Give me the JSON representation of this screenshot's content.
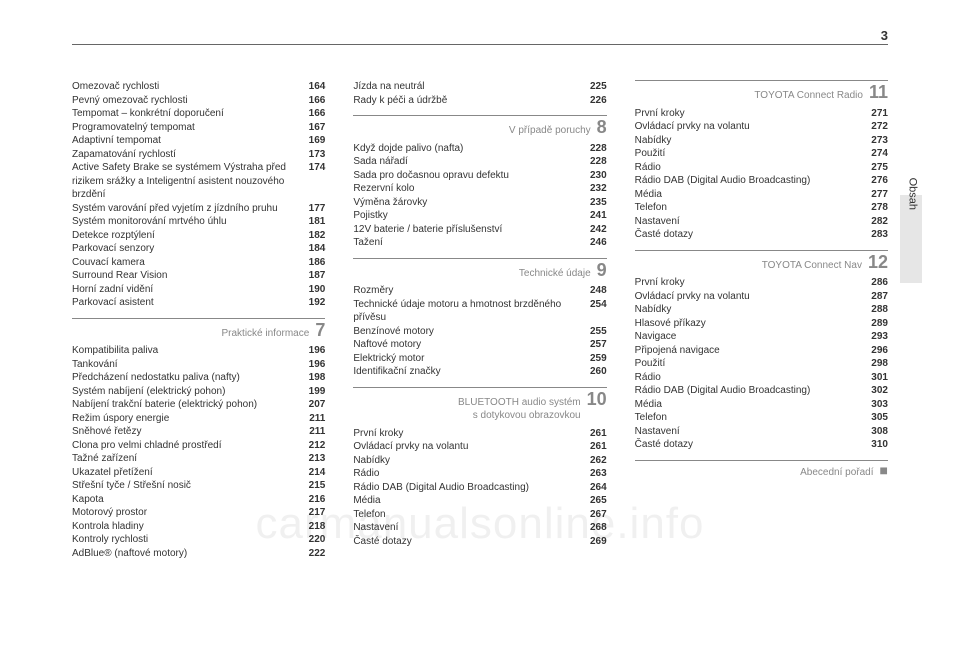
{
  "page_number": "3",
  "side_label": "Obsah",
  "watermark": "carmanualsonline.info",
  "col1": {
    "top": [
      {
        "label": "Omezovač rychlosti",
        "pg": "164"
      },
      {
        "label": "Pevný omezovač rychlosti",
        "pg": "166"
      },
      {
        "label": "Tempomat – konkrétní doporučení",
        "pg": "166"
      },
      {
        "label": "Programovatelný tempomat",
        "pg": "167"
      },
      {
        "label": "Adaptivní tempomat",
        "pg": "169"
      },
      {
        "label": "Zapamatování rychlostí",
        "pg": "173"
      },
      {
        "label": "Active Safety Brake se systémem Výstraha před rizikem srážky a Inteligentní asistent nouzového brzdění",
        "pg": "174"
      },
      {
        "label": "Systém varování před vyjetím z jízdního pruhu",
        "pg": "177"
      },
      {
        "label": "Systém monitorování mrtvého úhlu",
        "pg": "181"
      },
      {
        "label": "Detekce rozptýlení",
        "pg": "182"
      },
      {
        "label": "Parkovací senzory",
        "pg": "184"
      },
      {
        "label": "Couvací kamera",
        "pg": "186"
      },
      {
        "label": "Surround Rear Vision",
        "pg": "187"
      },
      {
        "label": "Horní zadní vidění",
        "pg": "190"
      },
      {
        "label": "Parkovací asistent",
        "pg": "192"
      }
    ],
    "section": {
      "title": "Praktické informace",
      "num": "7"
    },
    "items": [
      {
        "label": "Kompatibilita paliva",
        "pg": "196"
      },
      {
        "label": "Tankování",
        "pg": "196"
      },
      {
        "label": "Předcházení nedostatku paliva (nafty)",
        "pg": "198"
      },
      {
        "label": "Systém nabíjení (elektrický pohon)",
        "pg": "199"
      },
      {
        "label": "Nabíjení trakční baterie (elektrický pohon)",
        "pg": "207"
      },
      {
        "label": "Režim úspory energie",
        "pg": "211"
      },
      {
        "label": "Sněhové řetězy",
        "pg": "211"
      },
      {
        "label": "Clona pro velmi chladné prostředí",
        "pg": "212"
      },
      {
        "label": "Tažné zařízení",
        "pg": "213"
      },
      {
        "label": "Ukazatel přetížení",
        "pg": "214"
      },
      {
        "label": "Střešní tyče / Střešní nosič",
        "pg": "215"
      },
      {
        "label": "Kapota",
        "pg": "216"
      },
      {
        "label": "Motorový prostor",
        "pg": "217"
      },
      {
        "label": "Kontrola hladiny",
        "pg": "218"
      },
      {
        "label": "Kontroly rychlosti",
        "pg": "220"
      },
      {
        "label": "AdBlue® (naftové motory)",
        "pg": "222"
      }
    ]
  },
  "col2": {
    "top": [
      {
        "label": "Jízda na neutrál",
        "pg": "225"
      },
      {
        "label": "Rady k péči a údržbě",
        "pg": "226"
      }
    ],
    "section8": {
      "title": "V případě poruchy",
      "num": "8"
    },
    "items8": [
      {
        "label": "Když dojde palivo (nafta)",
        "pg": "228"
      },
      {
        "label": "Sada nářadí",
        "pg": "228"
      },
      {
        "label": "Sada pro dočasnou opravu defektu",
        "pg": "230"
      },
      {
        "label": "Rezervní kolo",
        "pg": "232"
      },
      {
        "label": "Výměna žárovky",
        "pg": "235"
      },
      {
        "label": "Pojistky",
        "pg": "241"
      },
      {
        "label": "12V baterie / baterie příslušenství",
        "pg": "242"
      },
      {
        "label": "Tažení",
        "pg": "246"
      }
    ],
    "section9": {
      "title": "Technické údaje",
      "num": "9"
    },
    "items9": [
      {
        "label": "Rozměry",
        "pg": "248"
      },
      {
        "label": "Technické údaje motoru a hmotnost brzděného přívěsu",
        "pg": "254"
      },
      {
        "label": "Benzínové motory",
        "pg": "255"
      },
      {
        "label": "Naftové motory",
        "pg": "257"
      },
      {
        "label": "Elektrický motor",
        "pg": "259"
      },
      {
        "label": "Identifikační značky",
        "pg": "260"
      }
    ],
    "section10": {
      "title": "BLUETOOTH audio systém",
      "subtitle": "s dotykovou obrazovkou",
      "num": "10"
    },
    "items10": [
      {
        "label": "První kroky",
        "pg": "261"
      },
      {
        "label": "Ovládací prvky na volantu",
        "pg": "261"
      },
      {
        "label": "Nabídky",
        "pg": "262"
      },
      {
        "label": "Rádio",
        "pg": "263"
      },
      {
        "label": "Rádio DAB (Digital Audio Broadcasting)",
        "pg": "264"
      },
      {
        "label": "Média",
        "pg": "265"
      },
      {
        "label": "Telefon",
        "pg": "267"
      },
      {
        "label": "Nastavení",
        "pg": "268"
      },
      {
        "label": "Časté dotazy",
        "pg": "269"
      }
    ]
  },
  "col3": {
    "section11": {
      "title": "TOYOTA Connect Radio",
      "num": "11"
    },
    "items11": [
      {
        "label": "První kroky",
        "pg": "271"
      },
      {
        "label": "Ovládací prvky na volantu",
        "pg": "272"
      },
      {
        "label": "Nabídky",
        "pg": "273"
      },
      {
        "label": "Použití",
        "pg": "274"
      },
      {
        "label": "Rádio",
        "pg": "275"
      },
      {
        "label": "Rádio DAB (Digital Audio Broadcasting)",
        "pg": "276"
      },
      {
        "label": "Média",
        "pg": "277"
      },
      {
        "label": "Telefon",
        "pg": "278"
      },
      {
        "label": "Nastavení",
        "pg": "282"
      },
      {
        "label": "Časté dotazy",
        "pg": "283"
      }
    ],
    "section12": {
      "title": "TOYOTA Connect Nav",
      "num": "12"
    },
    "items12": [
      {
        "label": "První kroky",
        "pg": "286"
      },
      {
        "label": "Ovládací prvky na volantu",
        "pg": "287"
      },
      {
        "label": "Nabídky",
        "pg": "288"
      },
      {
        "label": "Hlasové příkazy",
        "pg": "289"
      },
      {
        "label": "Navigace",
        "pg": "293"
      },
      {
        "label": "Připojená navigace",
        "pg": "296"
      },
      {
        "label": "Použití",
        "pg": "298"
      },
      {
        "label": "Rádio",
        "pg": "301"
      },
      {
        "label": "Rádio DAB (Digital Audio Broadcasting)",
        "pg": "302"
      },
      {
        "label": "Média",
        "pg": "303"
      },
      {
        "label": "Telefon",
        "pg": "305"
      },
      {
        "label": "Nastavení",
        "pg": "308"
      },
      {
        "label": "Časté dotazy",
        "pg": "310"
      }
    ],
    "sectionIndex": {
      "title": "Abecední pořadí"
    }
  }
}
